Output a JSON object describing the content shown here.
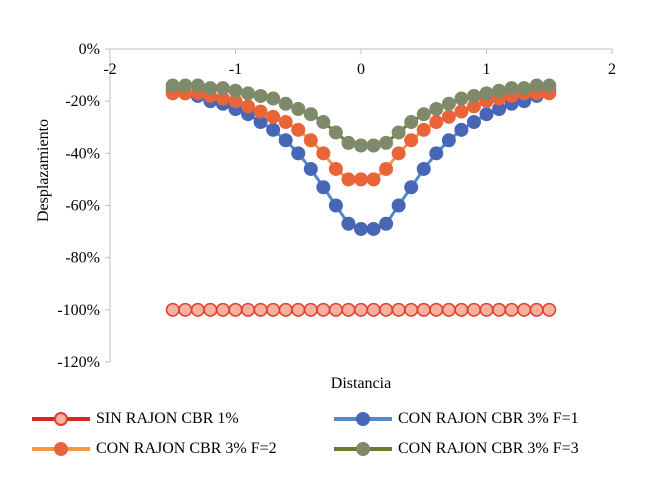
{
  "chart_data": {
    "type": "scatter",
    "title": "",
    "xlabel": "Distancia",
    "ylabel": "Desplazamiento",
    "xlim": [
      -2,
      2
    ],
    "ylim": [
      -120,
      0
    ],
    "xticks": [
      "-2",
      "-1",
      "0",
      "1",
      "2"
    ],
    "yticks": [
      "0%",
      "-20%",
      "-40%",
      "-60%",
      "-80%",
      "-100%",
      "-120%"
    ],
    "x": [
      -1.5,
      -1.4,
      -1.3,
      -1.2,
      -1.1,
      -1.0,
      -0.9,
      -0.8,
      -0.7,
      -0.6,
      -0.5,
      -0.4,
      -0.3,
      -0.2,
      -0.1,
      0.0,
      0.1,
      0.2,
      0.3,
      0.4,
      0.5,
      0.6,
      0.7,
      0.8,
      0.9,
      1.0,
      1.1,
      1.2,
      1.3,
      1.4,
      1.5
    ],
    "grid": false,
    "legend_position": "bottom",
    "series": [
      {
        "name": "SIN RAJON CBR  1%",
        "line_color": "#d42a1e",
        "marker_fill": "#f4b39e",
        "marker_stroke": "#e0402e",
        "values": [
          -100,
          -100,
          -100,
          -100,
          -100,
          -100,
          -100,
          -100,
          -100,
          -100,
          -100,
          -100,
          -100,
          -100,
          -100,
          -100,
          -100,
          -100,
          -100,
          -100,
          -100,
          -100,
          -100,
          -100,
          -100,
          -100,
          -100,
          -100,
          -100,
          -100,
          -100
        ]
      },
      {
        "name": "CON RAJON CBR 3% F=1",
        "line_color": "#4f8ad0",
        "marker_fill": "#4766b5",
        "marker_stroke": "#4766b5",
        "values": [
          -16,
          -17,
          -18,
          -20,
          -21,
          -23,
          -25,
          -28,
          -31,
          -35,
          -40,
          -46,
          -53,
          -60,
          -67,
          -69,
          -69,
          -67,
          -60,
          -53,
          -46,
          -40,
          -35,
          -31,
          -28,
          -25,
          -23,
          -21,
          -20,
          -18,
          -16
        ]
      },
      {
        "name": "CON RAJON CBR 3% F=2",
        "line_color": "#f39a4a",
        "marker_fill": "#e8653a",
        "marker_stroke": "#e8653a",
        "values": [
          -17,
          -17,
          -17,
          -18,
          -19,
          -20,
          -22,
          -24,
          -26,
          -28,
          -31,
          -35,
          -40,
          -46,
          -50,
          -50,
          -50,
          -46,
          -40,
          -35,
          -31,
          -28,
          -26,
          -24,
          -22,
          -20,
          -19,
          -18,
          -17,
          -17,
          -17
        ]
      },
      {
        "name": "CON RAJON CBR 3% F=3",
        "line_color": "#6f7a30",
        "marker_fill": "#7f8a6a",
        "marker_stroke": "#7f8a6a",
        "values": [
          -14,
          -14,
          -14,
          -15,
          -15,
          -16,
          -17,
          -18,
          -19,
          -21,
          -23,
          -25,
          -28,
          -32,
          -36,
          -37,
          -37,
          -36,
          -32,
          -28,
          -25,
          -23,
          -21,
          -19,
          -18,
          -17,
          -16,
          -15,
          -15,
          -14,
          -14
        ]
      }
    ]
  }
}
